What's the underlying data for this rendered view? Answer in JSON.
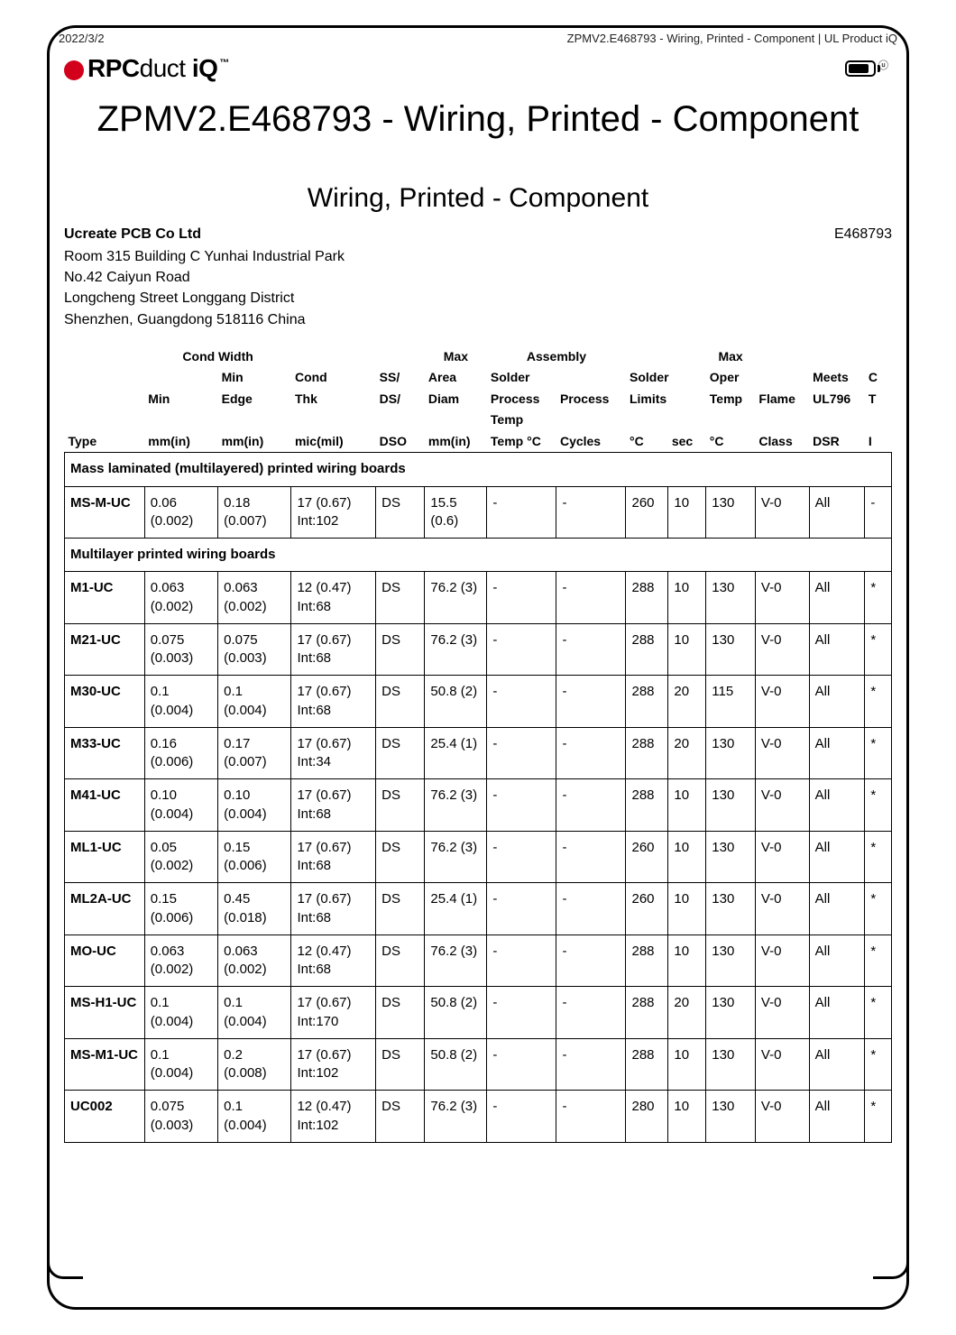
{
  "meta": {
    "date": "2022/3/2",
    "header_path": "ZPMV2.E468793 - Wiring, Printed - Component | UL Product iQ"
  },
  "logo": {
    "brand_prefix": "RPC",
    "brand_mid": "duct",
    "brand_iq": " iQ",
    "tm": "™"
  },
  "titles": {
    "page": "ZPMV2.E468793 - Wiring, Printed - Component",
    "section": "Wiring, Printed - Component"
  },
  "company": {
    "name": "Ucreate PCB Co Ltd",
    "file": "E468793",
    "addr1": "Room 315 Building C Yunhai Industrial Park",
    "addr2": "No.42 Caiyun Road",
    "addr3": "Longcheng Street Longgang District",
    "addr4": "Shenzhen, Guangdong 518116 China"
  },
  "table": {
    "group_headers": {
      "cond_width": "Cond Width",
      "max1": "Max",
      "assembly": "Assembly",
      "max2": "Max"
    },
    "col_headers": {
      "type": "Type",
      "min": "Min",
      "min_sub": "mm(in)",
      "edge": "Min Edge",
      "edge_sub": "mm(in)",
      "thk": "Cond Thk",
      "thk_sub": "mic(mil)",
      "ssds": "SS/ DS/",
      "ssds_sub": "DSO",
      "area": "Area Diam",
      "area_sub": "mm(in)",
      "asp_solder": "Solder Process",
      "asp_temp_sub": "Temp °C",
      "asp_proc": "Process",
      "asp_cyc_sub": "Cycles",
      "solder": "Solder Limits",
      "sl_c_sub": "°C",
      "sl_s_sub": "sec",
      "oper": "Oper Temp",
      "oper_sub": "°C",
      "flame": "Flame",
      "flame_sub": "Class",
      "meets": "Meets UL796",
      "meets_sub": "DSR",
      "cti": "C T",
      "cti_sub": "I"
    },
    "sections": [
      {
        "title": "Mass laminated (multilayered) printed wiring boards",
        "rows": [
          {
            "type": "MS-M-UC",
            "min": "0.06 (0.002)",
            "edge": "0.18 (0.007)",
            "thk": "17 (0.67) Int:102",
            "ssds": "DS",
            "area": "15.5 (0.6)",
            "asp_t": "-",
            "asp_c": "-",
            "sl_c": "260",
            "sl_s": "10",
            "oper": "130",
            "flame": "V-0",
            "ul796": "All",
            "cti": "-"
          }
        ]
      },
      {
        "title": "Multilayer printed wiring boards",
        "rows": [
          {
            "type": "M1-UC",
            "min": "0.063 (0.002)",
            "edge": "0.063 (0.002)",
            "thk": "12 (0.47) Int:68",
            "ssds": "DS",
            "area": "76.2 (3)",
            "asp_t": "-",
            "asp_c": "-",
            "sl_c": "288",
            "sl_s": "10",
            "oper": "130",
            "flame": "V-0",
            "ul796": "All",
            "cti": "*"
          },
          {
            "type": "M21-UC",
            "min": "0.075 (0.003)",
            "edge": "0.075 (0.003)",
            "thk": "17 (0.67) Int:68",
            "ssds": "DS",
            "area": "76.2 (3)",
            "asp_t": "-",
            "asp_c": "-",
            "sl_c": "288",
            "sl_s": "10",
            "oper": "130",
            "flame": "V-0",
            "ul796": "All",
            "cti": "*"
          },
          {
            "type": "M30-UC",
            "min": "0.1 (0.004)",
            "edge": "0.1 (0.004)",
            "thk": "17 (0.67) Int:68",
            "ssds": "DS",
            "area": "50.8 (2)",
            "asp_t": "-",
            "asp_c": "-",
            "sl_c": "288",
            "sl_s": "20",
            "oper": "115",
            "flame": "V-0",
            "ul796": "All",
            "cti": "*"
          },
          {
            "type": "M33-UC",
            "min": "0.16 (0.006)",
            "edge": "0.17 (0.007)",
            "thk": "17 (0.67) Int:34",
            "ssds": "DS",
            "area": "25.4 (1)",
            "asp_t": "-",
            "asp_c": "-",
            "sl_c": "288",
            "sl_s": "20",
            "oper": "130",
            "flame": "V-0",
            "ul796": "All",
            "cti": "*"
          },
          {
            "type": "M41-UC",
            "min": "0.10 (0.004)",
            "edge": "0.10 (0.004)",
            "thk": "17 (0.67) Int:68",
            "ssds": "DS",
            "area": "76.2 (3)",
            "asp_t": "-",
            "asp_c": "-",
            "sl_c": "288",
            "sl_s": "10",
            "oper": "130",
            "flame": "V-0",
            "ul796": "All",
            "cti": "*"
          },
          {
            "type": "ML1-UC",
            "min": "0.05 (0.002)",
            "edge": "0.15 (0.006)",
            "thk": "17 (0.67) Int:68",
            "ssds": "DS",
            "area": "76.2 (3)",
            "asp_t": "-",
            "asp_c": "-",
            "sl_c": "260",
            "sl_s": "10",
            "oper": "130",
            "flame": "V-0",
            "ul796": "All",
            "cti": "*"
          },
          {
            "type": "ML2A-UC",
            "min": "0.15 (0.006)",
            "edge": "0.45 (0.018)",
            "thk": "17 (0.67) Int:68",
            "ssds": "DS",
            "area": "25.4 (1)",
            "asp_t": "-",
            "asp_c": "-",
            "sl_c": "260",
            "sl_s": "10",
            "oper": "130",
            "flame": "V-0",
            "ul796": "All",
            "cti": "*"
          },
          {
            "type": "MO-UC",
            "min": "0.063 (0.002)",
            "edge": "0.063 (0.002)",
            "thk": "12 (0.47) Int:68",
            "ssds": "DS",
            "area": "76.2 (3)",
            "asp_t": "-",
            "asp_c": "-",
            "sl_c": "288",
            "sl_s": "10",
            "oper": "130",
            "flame": "V-0",
            "ul796": "All",
            "cti": "*"
          },
          {
            "type": "MS-H1-UC",
            "min": "0.1 (0.004)",
            "edge": "0.1 (0.004)",
            "thk": "17 (0.67) Int:170",
            "ssds": "DS",
            "area": "50.8 (2)",
            "asp_t": "-",
            "asp_c": "-",
            "sl_c": "288",
            "sl_s": "20",
            "oper": "130",
            "flame": "V-0",
            "ul796": "All",
            "cti": "*"
          },
          {
            "type": "MS-M1-UC",
            "min": "0.1 (0.004)",
            "edge": "0.2 (0.008)",
            "thk": "17 (0.67) Int:102",
            "ssds": "DS",
            "area": "50.8 (2)",
            "asp_t": "-",
            "asp_c": "-",
            "sl_c": "288",
            "sl_s": "10",
            "oper": "130",
            "flame": "V-0",
            "ul796": "All",
            "cti": "*"
          },
          {
            "type": "UC002",
            "min": "0.075 (0.003)",
            "edge": "0.1 (0.004)",
            "thk": "12 (0.47) Int:102",
            "ssds": "DS",
            "area": "76.2 (3)",
            "asp_t": "-",
            "asp_c": "-",
            "sl_c": "280",
            "sl_s": "10",
            "oper": "130",
            "flame": "V-0",
            "ul796": "All",
            "cti": "*"
          }
        ]
      }
    ]
  }
}
